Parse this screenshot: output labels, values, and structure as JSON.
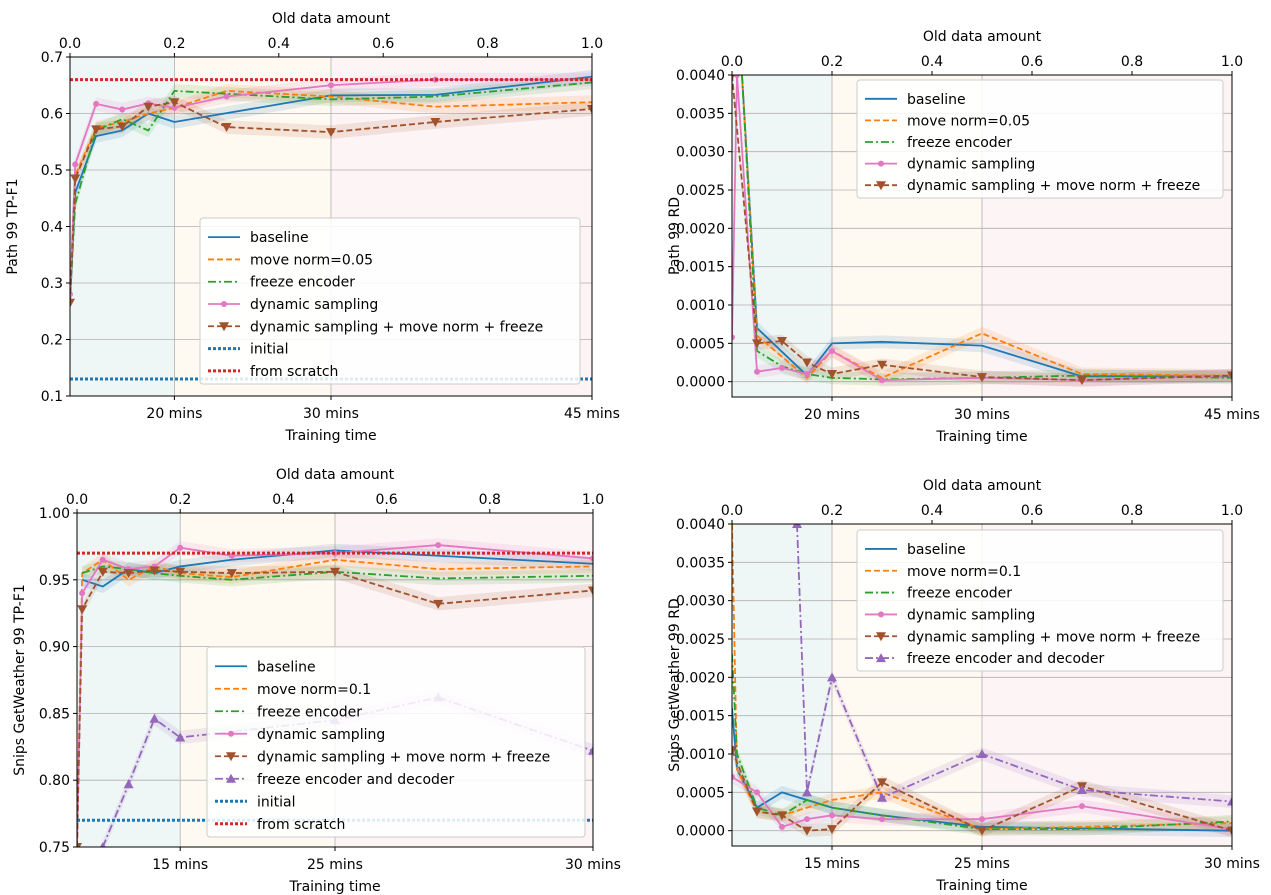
{
  "chart_data": [
    {
      "type": "line",
      "title": "",
      "xlabel": "Training time",
      "ylabel": "Path 99 TP-F1",
      "top_xlabel": "Old data amount",
      "x_range": [
        0,
        1
      ],
      "ylim": [
        0.1,
        0.7
      ],
      "yticks": [
        "0.1",
        "0.2",
        "0.3",
        "0.4",
        "0.5",
        "0.6",
        "0.7"
      ],
      "top_ticks": [
        "0.0",
        "0.2",
        "0.4",
        "0.6",
        "0.8",
        "1.0"
      ],
      "bottom_ticks": [
        {
          "x": 0.2,
          "label": "20 mins"
        },
        {
          "x": 0.5,
          "label": "30 mins"
        },
        {
          "x": 1.0,
          "label": "45 mins"
        }
      ],
      "grid": true,
      "legend_position": "lower-right",
      "series": [
        {
          "name": "baseline",
          "color": "#1f77b4",
          "dash": "solid",
          "marker": "none",
          "x": [
            0,
            0.01,
            0.05,
            0.1,
            0.15,
            0.2,
            0.5,
            0.7,
            1.0
          ],
          "y": [
            0.265,
            0.46,
            0.56,
            0.57,
            0.6,
            0.585,
            0.632,
            0.633,
            0.665
          ]
        },
        {
          "name": "move norm=0.05",
          "color": "#ff7f0e",
          "dash": "dashed",
          "marker": "none",
          "x": [
            0,
            0.01,
            0.05,
            0.1,
            0.15,
            0.2,
            0.3,
            0.5,
            0.7,
            1.0
          ],
          "y": [
            0.27,
            0.49,
            0.575,
            0.585,
            0.6,
            0.61,
            0.64,
            0.63,
            0.612,
            0.62
          ]
        },
        {
          "name": "freeze encoder",
          "color": "#2ca02c",
          "dash": "dashdot",
          "marker": "none",
          "x": [
            0,
            0.01,
            0.05,
            0.1,
            0.15,
            0.2,
            0.3,
            0.5,
            0.7,
            1.0
          ],
          "y": [
            0.27,
            0.44,
            0.57,
            0.59,
            0.57,
            0.64,
            0.635,
            0.625,
            0.63,
            0.655
          ]
        },
        {
          "name": "dynamic sampling",
          "color": "#e377c2",
          "dash": "solid",
          "marker": "circle",
          "x": [
            0,
            0.01,
            0.05,
            0.1,
            0.15,
            0.2,
            0.3,
            0.5,
            0.7,
            1.0
          ],
          "y": [
            0.28,
            0.51,
            0.617,
            0.607,
            0.618,
            0.61,
            0.63,
            0.65,
            0.66,
            0.66
          ]
        },
        {
          "name": "dynamic sampling + move norm + freeze",
          "color": "#a0522d",
          "dash": "dashed",
          "marker": "triangle-down",
          "x": [
            0,
            0.01,
            0.05,
            0.1,
            0.15,
            0.2,
            0.3,
            0.5,
            0.7,
            1.0
          ],
          "y": [
            0.265,
            0.485,
            0.572,
            0.577,
            0.612,
            0.62,
            0.576,
            0.567,
            0.585,
            0.608
          ]
        },
        {
          "name": "initial",
          "color": "#1f77b4",
          "dash": "dotted",
          "marker": "none",
          "x": [
            0,
            1.0
          ],
          "y": [
            0.13,
            0.13
          ]
        },
        {
          "name": "from scratch",
          "color": "#d62728",
          "dash": "dotted",
          "marker": "none",
          "x": [
            0,
            1.0
          ],
          "y": [
            0.66,
            0.66
          ]
        }
      ]
    },
    {
      "type": "line",
      "title": "",
      "xlabel": "Training time",
      "ylabel": "Path 99 RD",
      "top_xlabel": "Old data amount",
      "x_range": [
        0,
        1
      ],
      "ylim": [
        -0.0002,
        0.004
      ],
      "yticks": [
        "0.0000",
        "0.0005",
        "0.0010",
        "0.0015",
        "0.0020",
        "0.0025",
        "0.0030",
        "0.0035",
        "0.0040"
      ],
      "top_ticks": [
        "0.0",
        "0.2",
        "0.4",
        "0.6",
        "0.8",
        "1.0"
      ],
      "bottom_ticks": [
        {
          "x": 0.2,
          "label": "20 mins"
        },
        {
          "x": 0.5,
          "label": "30 mins"
        },
        {
          "x": 1.0,
          "label": "45 mins"
        }
      ],
      "grid": true,
      "legend_position": "upper-right",
      "series": [
        {
          "name": "baseline",
          "color": "#1f77b4",
          "dash": "solid",
          "marker": "none",
          "x": [
            0.02,
            0.05,
            0.15,
            0.2,
            0.3,
            0.5,
            0.7,
            1.0
          ],
          "y": [
            0.004,
            0.0007,
            8e-05,
            0.0005,
            0.00052,
            0.00047,
            7e-05,
            7e-05
          ]
        },
        {
          "name": "move norm=0.05",
          "color": "#ff7f0e",
          "dash": "dashed",
          "marker": "none",
          "x": [
            0.02,
            0.05,
            0.15,
            0.2,
            0.3,
            0.5,
            0.7,
            1.0
          ],
          "y": [
            0.004,
            0.0006,
            5e-05,
            0.0004,
            5e-05,
            0.00063,
            0.0001,
            8e-05
          ]
        },
        {
          "name": "freeze encoder",
          "color": "#2ca02c",
          "dash": "dashdot",
          "marker": "none",
          "x": [
            0.02,
            0.05,
            0.1,
            0.15,
            0.2,
            0.3,
            0.5,
            0.7,
            1.0
          ],
          "y": [
            0.004,
            0.0004,
            0.0002,
            0.0001,
            5e-05,
            3e-05,
            5e-05,
            8e-05,
            5e-05
          ]
        },
        {
          "name": "dynamic sampling",
          "color": "#e377c2",
          "dash": "solid",
          "marker": "circle",
          "x": [
            0,
            0.01,
            0.05,
            0.1,
            0.15,
            0.2,
            0.3,
            0.5,
            0.7,
            1.0
          ],
          "y": [
            0.00058,
            0.004,
            0.00013,
            0.00018,
            0.0001,
            0.0004,
            2e-05,
            5e-05,
            2e-05,
            8e-05
          ]
        },
        {
          "name": "dynamic sampling + move norm + freeze",
          "color": "#a0522d",
          "dash": "dashed",
          "marker": "triangle-down",
          "x": [
            0,
            0.05,
            0.1,
            0.15,
            0.2,
            0.3,
            0.5,
            0.7,
            1.0
          ],
          "y": [
            0.004,
            0.0005,
            0.00053,
            0.00025,
            0.0001,
            0.00022,
            6e-05,
            2e-05,
            8e-05
          ]
        }
      ]
    },
    {
      "type": "line",
      "title": "",
      "xlabel": "Training time",
      "ylabel": "Snips GetWeather 99 TP-F1",
      "top_xlabel": "Old data amount",
      "x_range": [
        0,
        1
      ],
      "ylim": [
        0.75,
        1.0
      ],
      "yticks": [
        "0.75",
        "0.80",
        "0.85",
        "0.90",
        "0.95",
        "1.00"
      ],
      "top_ticks": [
        "0.0",
        "0.2",
        "0.4",
        "0.6",
        "0.8",
        "1.0"
      ],
      "bottom_ticks": [
        {
          "x": 0.2,
          "label": "15 mins"
        },
        {
          "x": 0.5,
          "label": "25 mins"
        },
        {
          "x": 1.0,
          "label": "30 mins"
        }
      ],
      "grid": true,
      "legend_position": "lower-right",
      "series": [
        {
          "name": "baseline",
          "color": "#1f77b4",
          "dash": "solid",
          "marker": "none",
          "x": [
            0.01,
            0.05,
            0.1,
            0.15,
            0.2,
            0.3,
            0.5,
            0.7,
            1.0
          ],
          "y": [
            0.95,
            0.945,
            0.958,
            0.955,
            0.96,
            0.965,
            0.972,
            0.968,
            0.962
          ]
        },
        {
          "name": "move norm=0.1",
          "color": "#ff7f0e",
          "dash": "dashed",
          "marker": "none",
          "x": [
            0,
            0.01,
            0.05,
            0.1,
            0.15,
            0.2,
            0.3,
            0.5,
            0.7,
            1.0
          ],
          "y": [
            0.75,
            0.955,
            0.965,
            0.95,
            0.96,
            0.955,
            0.952,
            0.965,
            0.958,
            0.96
          ]
        },
        {
          "name": "freeze encoder",
          "color": "#2ca02c",
          "dash": "dashdot",
          "marker": "none",
          "x": [
            0.01,
            0.05,
            0.1,
            0.15,
            0.2,
            0.3,
            0.5,
            0.7,
            1.0
          ],
          "y": [
            0.955,
            0.96,
            0.958,
            0.955,
            0.953,
            0.95,
            0.956,
            0.951,
            0.953
          ]
        },
        {
          "name": "dynamic sampling",
          "color": "#e377c2",
          "dash": "solid",
          "marker": "circle",
          "x": [
            0,
            0.01,
            0.05,
            0.1,
            0.15,
            0.2,
            0.3,
            0.5,
            0.7,
            1.0
          ],
          "y": [
            0.75,
            0.94,
            0.965,
            0.958,
            0.96,
            0.974,
            0.968,
            0.97,
            0.976,
            0.966
          ]
        },
        {
          "name": "dynamic sampling + move norm + freeze",
          "color": "#a0522d",
          "dash": "dashed",
          "marker": "triangle-down",
          "x": [
            0,
            0.01,
            0.05,
            0.1,
            0.15,
            0.2,
            0.3,
            0.5,
            0.7,
            1.0
          ],
          "y": [
            0.75,
            0.928,
            0.956,
            0.955,
            0.957,
            0.956,
            0.955,
            0.956,
            0.932,
            0.942
          ]
        },
        {
          "name": "freeze encoder and decoder",
          "color": "#9467bd",
          "dash": "dashdot",
          "marker": "triangle-up",
          "x": [
            0.05,
            0.1,
            0.15,
            0.2,
            0.5,
            0.7,
            1.0
          ],
          "y": [
            0.75,
            0.797,
            0.846,
            0.832,
            0.845,
            0.862,
            0.822
          ]
        },
        {
          "name": "initial",
          "color": "#1f77b4",
          "dash": "dotted",
          "marker": "none",
          "x": [
            0,
            1.0
          ],
          "y": [
            0.77,
            0.77
          ]
        },
        {
          "name": "from scratch",
          "color": "#d62728",
          "dash": "dotted",
          "marker": "none",
          "x": [
            0,
            1.0
          ],
          "y": [
            0.97,
            0.97
          ]
        }
      ]
    },
    {
      "type": "line",
      "title": "",
      "xlabel": "Training time",
      "ylabel": "Snips GetWeather 99 RD",
      "top_xlabel": "Old data amount",
      "x_range": [
        0,
        1
      ],
      "ylim": [
        -0.0002,
        0.004
      ],
      "yticks": [
        "0.0000",
        "0.0005",
        "0.0010",
        "0.0015",
        "0.0020",
        "0.0025",
        "0.0030",
        "0.0035",
        "0.0040"
      ],
      "top_ticks": [
        "0.0",
        "0.2",
        "0.4",
        "0.6",
        "0.8",
        "1.0"
      ],
      "bottom_ticks": [
        {
          "x": 0.2,
          "label": "15 mins"
        },
        {
          "x": 0.5,
          "label": "25 mins"
        },
        {
          "x": 1.0,
          "label": "30 mins"
        }
      ],
      "grid": true,
      "legend_position": "upper-right",
      "series": [
        {
          "name": "baseline",
          "color": "#1f77b4",
          "dash": "solid",
          "marker": "none",
          "x": [
            0,
            0.01,
            0.05,
            0.1,
            0.15,
            0.2,
            0.3,
            0.5,
            0.7,
            1.0
          ],
          "y": [
            0.0016,
            0.0008,
            0.0003,
            0.0005,
            0.0004,
            0.0003,
            0.0002,
            5e-05,
            3e-05,
            0.0
          ]
        },
        {
          "name": "move norm=0.1",
          "color": "#ff7f0e",
          "dash": "dashed",
          "marker": "none",
          "x": [
            0,
            0.01,
            0.05,
            0.1,
            0.15,
            0.2,
            0.3,
            0.5,
            0.7,
            1.0
          ],
          "y": [
            0.004,
            0.0008,
            0.00025,
            0.0002,
            0.0003,
            0.0004,
            0.0005,
            2e-05,
            5e-05,
            0.0001
          ]
        },
        {
          "name": "freeze encoder",
          "color": "#2ca02c",
          "dash": "dashdot",
          "marker": "none",
          "x": [
            0,
            0.01,
            0.05,
            0.1,
            0.15,
            0.2,
            0.3,
            0.5,
            0.7,
            1.0
          ],
          "y": [
            0.0023,
            0.001,
            0.0003,
            0.0002,
            0.0004,
            0.0003,
            0.0002,
            2e-05,
            2e-05,
            0.00012
          ]
        },
        {
          "name": "dynamic sampling",
          "color": "#e377c2",
          "dash": "solid",
          "marker": "circle",
          "x": [
            0,
            0.05,
            0.1,
            0.15,
            0.2,
            0.3,
            0.5,
            0.7,
            1.0
          ],
          "y": [
            0.0007,
            0.0005,
            5e-05,
            0.00015,
            0.0002,
            0.00015,
            0.00015,
            0.00032,
            2e-05
          ]
        },
        {
          "name": "dynamic sampling + move norm + freeze",
          "color": "#a0522d",
          "dash": "dashed",
          "marker": "triangle-down",
          "x": [
            0,
            0.05,
            0.1,
            0.15,
            0.2,
            0.3,
            0.5,
            0.7,
            1.0
          ],
          "y": [
            0.00105,
            0.00025,
            0.0002,
            0.0,
            2e-05,
            0.00063,
            0.0,
            0.00058,
            0.0
          ]
        },
        {
          "name": "freeze encoder and decoder",
          "color": "#9467bd",
          "dash": "dashdot",
          "marker": "triangle-up",
          "x": [
            0.13,
            0.15,
            0.2,
            0.3,
            0.5,
            0.7,
            1.0
          ],
          "y": [
            0.004,
            0.0005,
            0.002,
            0.00043,
            0.001,
            0.00053,
            0.00038
          ]
        }
      ]
    }
  ]
}
